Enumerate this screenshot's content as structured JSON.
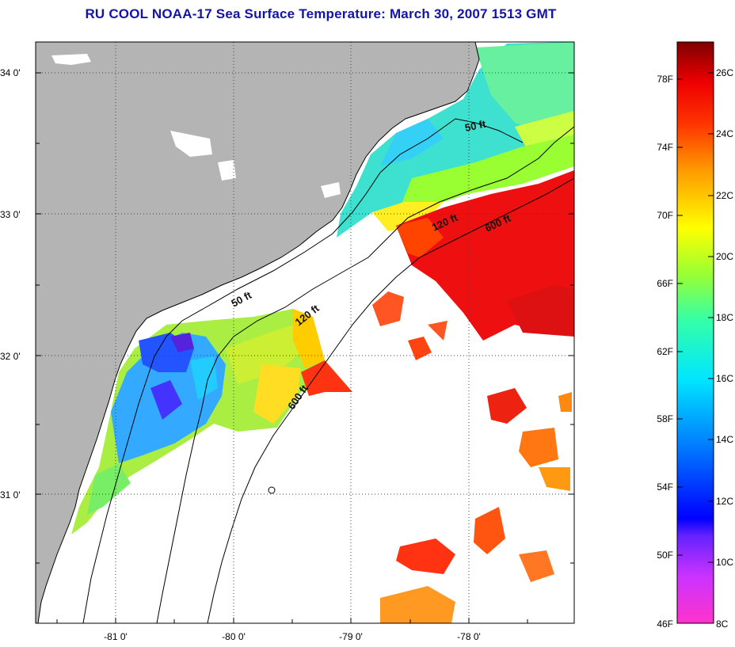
{
  "title": "RU COOL  NOAA-17  Sea Surface Temperature:  March 30, 2007 1513 GMT",
  "map": {
    "lat_labels": [
      "34 0'",
      "33 0'",
      "32 0'",
      "31 0'"
    ],
    "lon_labels": [
      "-81 0'",
      "-80 0'",
      "-79 0'",
      "-78 0'"
    ],
    "lat_range": [
      30.2,
      34.2
    ],
    "lon_range": [
      -81.65,
      -77.15
    ],
    "depth_labels": [
      "50 ft",
      "120 ft",
      "600 ft",
      "50 ft",
      "120 ft",
      "600 ft"
    ],
    "colors": {
      "land": "#b4b4b4",
      "cloud_nodata": "#ffffff",
      "coastline": "#000000"
    }
  },
  "colorbar": {
    "fahrenheit_labels": [
      "78F",
      "74F",
      "70F",
      "66F",
      "62F",
      "58F",
      "54F",
      "50F",
      "46F"
    ],
    "celsius_labels": [
      "26C",
      "24C",
      "22C",
      "20C",
      "18C",
      "16C",
      "14C",
      "12C",
      "10C",
      "8C"
    ],
    "gradient_stops": [
      "#ff33cc",
      "#9933ff",
      "#2a2aff",
      "#0080ff",
      "#00e6ff",
      "#33ffaa",
      "#99ff33",
      "#ffff00",
      "#ffaa00",
      "#ff4400",
      "#ff0000",
      "#c00000",
      "#800000"
    ]
  }
}
